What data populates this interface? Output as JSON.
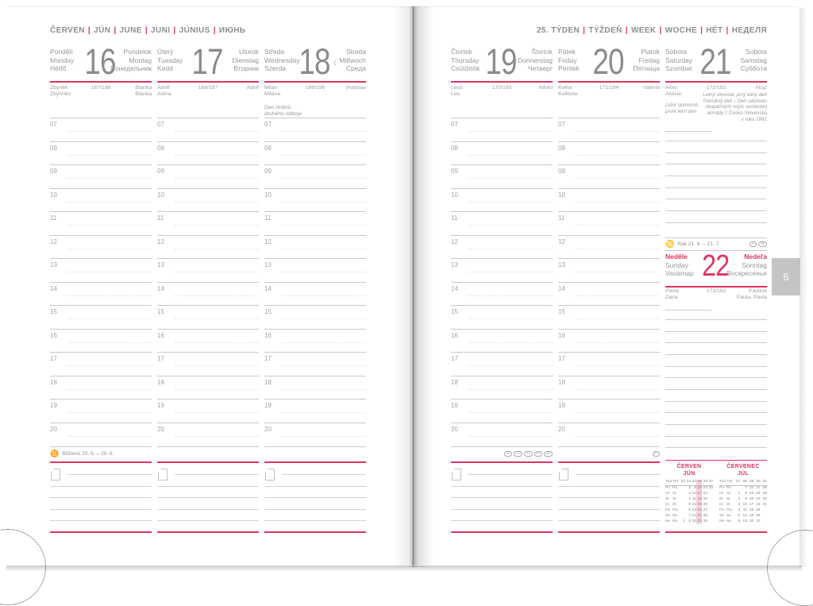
{
  "accent": "#dd3360",
  "page_tab": "6",
  "month_header": [
    "ČERVEN",
    "JÚN",
    "JUNE",
    "JUNI",
    "JÚNIUS",
    "ИЮНЬ"
  ],
  "week_header": [
    "25. TÝDEN",
    "TÝŽDEŇ",
    "WEEK",
    "WOCHE",
    "HÉT",
    "НЕДЕЛЯ"
  ],
  "hours": [
    "07",
    "08",
    "09",
    "10",
    "11",
    "12",
    "13",
    "14",
    "15",
    "16",
    "17",
    "18",
    "19",
    "20"
  ],
  "days": [
    {
      "id": "monday",
      "left_names": [
        "Pondělí",
        "Monday",
        "Hétfő"
      ],
      "number": "16",
      "moon": "",
      "right_names": [
        "Pondelok",
        "Montag",
        "Понедельник"
      ],
      "nameday_left": [
        "Zbyněk",
        "Zbyhněv"
      ],
      "day_of_year": "167/198",
      "nameday_right": [
        "Bianka",
        "Blanka"
      ],
      "note_lines": [],
      "footer_zodiac": {
        "icon": "gemini-icon",
        "symbol": "♊",
        "label": "Blíženci 20. 5. – 20. 6."
      },
      "footer_badges": []
    },
    {
      "id": "tuesday",
      "left_names": [
        "Úterý",
        "Tuesday",
        "Kedd"
      ],
      "number": "17",
      "moon": "",
      "right_names": [
        "Utorok",
        "Dienstag",
        "Вторник"
      ],
      "nameday_left": [
        "Adolf",
        "Adina"
      ],
      "day_of_year": "168/197",
      "nameday_right": [
        "Adolf"
      ],
      "note_lines": [],
      "footer_zodiac": null,
      "footer_badges": []
    },
    {
      "id": "wednesday",
      "left_names": [
        "Středa",
        "Wednesday",
        "Szerda"
      ],
      "number": "18",
      "moon": "☾",
      "right_names": [
        "Streda",
        "Mittwoch",
        "Среда"
      ],
      "nameday_left": [
        "Milan",
        "Milana"
      ],
      "day_of_year": "169/196",
      "nameday_right": [
        "Vratislav"
      ],
      "note_lines": [
        "Den hrdinů",
        "druhého odboje"
      ],
      "footer_zodiac": null,
      "footer_badges": []
    },
    {
      "id": "thursday",
      "left_names": [
        "Čtvrtek",
        "Thursday",
        "Csütörtök"
      ],
      "number": "19",
      "moon": "",
      "right_names": [
        "Štvrtok",
        "Donnerstag",
        "Четверг"
      ],
      "nameday_left": [
        "Leoš",
        "Leo"
      ],
      "day_of_year": "170/195",
      "nameday_right": [
        "Alfréd"
      ],
      "note_lines": [],
      "footer_zodiac": null,
      "footer_badges": [
        "AT",
        "CH",
        "PL",
        "PT",
        "US"
      ]
    },
    {
      "id": "friday",
      "left_names": [
        "Pátek",
        "Friday",
        "Péntek"
      ],
      "number": "20",
      "moon": "",
      "right_names": [
        "Piatok",
        "Freitag",
        "Пятница"
      ],
      "nameday_left": [
        "Květa",
        "Květuše"
      ],
      "day_of_year": "171/194",
      "nameday_right": [
        "Valéria"
      ],
      "note_lines": [],
      "footer_zodiac": null,
      "footer_badges": [
        "FI"
      ]
    }
  ],
  "saturday": {
    "id": "saturday",
    "left_names": [
      "Sobota",
      "Saturday",
      "Szombat"
    ],
    "number": "21",
    "right_names": [
      "Sobota",
      "Samstag",
      "Суббота"
    ],
    "nameday_left": [
      "Alois",
      "Aloisie"
    ],
    "day_of_year": "172/193",
    "nameday_right": [
      "Alojz"
    ],
    "holiday_left": [
      "Letní slunovrat,",
      "první letní den"
    ],
    "holiday_right": [
      "Letný slnovrat, prvý letný deň",
      "Pamätný deň – Deň odchodu",
      "okupačných vojsk sovietskej",
      "armády z Česko-Slovenska",
      "v roku 1991"
    ]
  },
  "zodiac_divider": {
    "icon": "cancer-icon",
    "symbol": "♋",
    "label": "Rak 21. 6. – 21. 7.",
    "badges": [
      "FI",
      "SE"
    ]
  },
  "sunday": {
    "id": "sunday",
    "left_names": [
      "Neděle",
      "Sunday",
      "Vasárnap"
    ],
    "number": "22",
    "right_names": [
      "Nedeľa",
      "Sonntag",
      "Воскресенье"
    ],
    "nameday_left": [
      "Pavla",
      "Zaira"
    ],
    "day_of_year": "173/192",
    "nameday_right": [
      "Paulína",
      "Paula, Pavla"
    ]
  },
  "mini_calendars": [
    {
      "title": [
        "ČERVEN",
        "JÚN"
      ],
      "header": [
        "Týd",
        "Týž",
        "22",
        "23",
        "24",
        "25",
        "26",
        "27"
      ],
      "highlight": "25",
      "rows": [
        [
          "Po",
          "Po",
          "",
          "2",
          "9",
          "16",
          "23",
          "30"
        ],
        [
          "Út",
          "Ut",
          "",
          "3",
          "10",
          "17",
          "24",
          ""
        ],
        [
          "St",
          "St",
          "",
          "4",
          "11",
          "18",
          "25",
          ""
        ],
        [
          "Čt",
          "Št",
          "",
          "5",
          "12",
          "19",
          "26",
          ""
        ],
        [
          "Pá",
          "Pia",
          "",
          "6",
          "13",
          "20",
          "27",
          ""
        ],
        [
          "So",
          "So",
          "",
          "7",
          "14",
          "21",
          "28",
          ""
        ],
        [
          "Ne",
          "Ne",
          "1",
          "8",
          "15",
          "22",
          "29",
          ""
        ]
      ]
    },
    {
      "title": [
        "ČERVENEC",
        "JÚL"
      ],
      "header": [
        "Týd",
        "Týž",
        "27",
        "28",
        "29",
        "30",
        "31"
      ],
      "highlight": "",
      "rows": [
        [
          "Po",
          "Po",
          "",
          "7",
          "14",
          "21",
          "28"
        ],
        [
          "Út",
          "Ut",
          "1",
          "8",
          "15",
          "22",
          "29"
        ],
        [
          "St",
          "St",
          "2",
          "9",
          "16",
          "23",
          "30"
        ],
        [
          "Čt",
          "Št",
          "3",
          "10",
          "17",
          "24",
          "31"
        ],
        [
          "Pá",
          "Pia",
          "4",
          "11",
          "18",
          "25",
          ""
        ],
        [
          "So",
          "So",
          "5",
          "12",
          "19",
          "26",
          ""
        ],
        [
          "Ne",
          "Ne",
          "6",
          "13",
          "20",
          "27",
          ""
        ]
      ]
    }
  ]
}
